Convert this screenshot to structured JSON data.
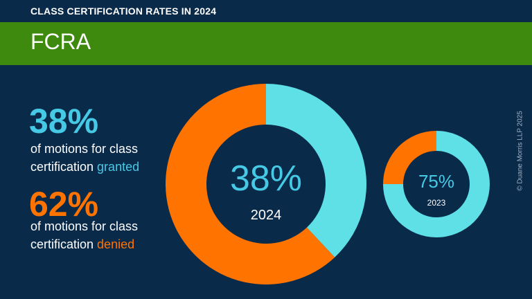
{
  "header": {
    "subtitle": "CLASS CERTIFICATION RATES IN 2024",
    "title": "FCRA"
  },
  "stats": {
    "granted_pct": "38%",
    "granted_line1": "of motions for class",
    "granted_line2_prefix": "certification ",
    "granted_word": "granted",
    "denied_pct": "62%",
    "denied_line1": "of motions for class",
    "denied_line2_prefix": "certification ",
    "denied_word": "denied"
  },
  "colors": {
    "background": "#0a2a4a",
    "banner": "#3d8a0f",
    "granted": "#5ee0e6",
    "granted_text": "#46c9e5",
    "denied": "#ff7300"
  },
  "chart_data": [
    {
      "type": "pie",
      "subtype": "donut",
      "title": "2024",
      "center_label": "38%",
      "center_sublabel": "2024",
      "slices": [
        {
          "label": "granted",
          "value": 38
        },
        {
          "label": "denied",
          "value": 62
        }
      ]
    },
    {
      "type": "pie",
      "subtype": "donut",
      "title": "2023",
      "center_label": "75%",
      "center_sublabel": "2023",
      "slices": [
        {
          "label": "granted",
          "value": 75
        },
        {
          "label": "denied",
          "value": 25
        }
      ]
    }
  ],
  "footer": {
    "copyright": "© Duane Morris LLP 2025"
  }
}
